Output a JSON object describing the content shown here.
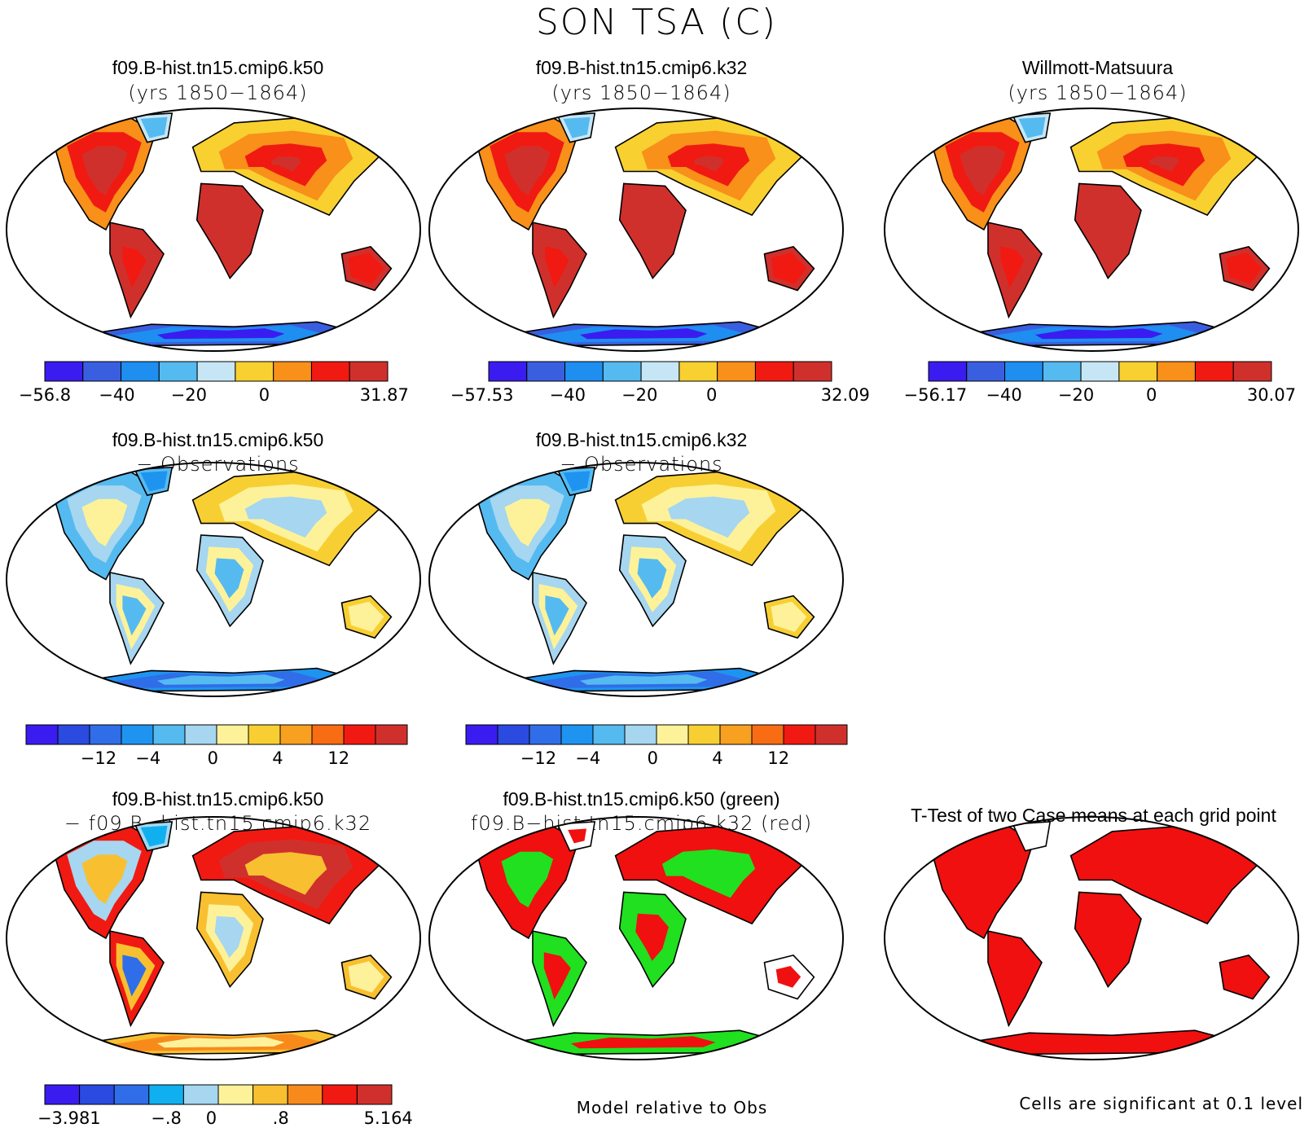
{
  "title": "SON TSA (C)",
  "colors": {
    "abs": [
      "#3a1cf0",
      "#3a5ee0",
      "#1e8ef0",
      "#55baf0",
      "#c6e6f5",
      "#f8d030",
      "#f8901a",
      "#f01a12",
      "#d0302c"
    ],
    "diff": [
      "#3a1cf0",
      "#2a4ae0",
      "#2f6ee8",
      "#1e94f0",
      "#55baf0",
      "#a6d6f0",
      "#fdf29a",
      "#f8cf32",
      "#f8a020",
      "#f86c14",
      "#f01a12",
      "#d0302c"
    ],
    "case": [
      "#3a1cf0",
      "#2a4ae0",
      "#2f6ee8",
      "#10b0f0",
      "#a6d6f0",
      "#fdf29a",
      "#f8c030",
      "#f88a1c",
      "#f01a12",
      "#d0302c"
    ],
    "green": "#20e020",
    "red": "#f01010"
  },
  "panels": [
    {
      "title": "f09.B-hist.tn15.cmip6.k50",
      "subtitle": "(yrs 1850−1864)",
      "scheme": "abs"
    },
    {
      "title": "f09.B-hist.tn15.cmip6.k32",
      "subtitle": "(yrs 1850−1864)",
      "scheme": "abs"
    },
    {
      "title": "Willmott-Matsuura",
      "subtitle": "(yrs 1850−1864)",
      "scheme": "abs"
    },
    {
      "title": "f09.B-hist.tn15.cmip6.k50",
      "subtitle": "− Observations",
      "scheme": "diff"
    },
    {
      "title": "f09.B-hist.tn15.cmip6.k32",
      "subtitle": "− Observations",
      "scheme": "diff"
    },
    {
      "title": "f09.B-hist.tn15.cmip6.k50",
      "subtitle": "− f09.B−hist.tn15.cmip6.k32",
      "scheme": "case"
    },
    {
      "title": "f09.B-hist.tn15.cmip6.k50 (green)",
      "subtitle": "f09.B−hist.tn15.cmip6.k32 (red)",
      "scheme": "greenred"
    },
    {
      "title": "T-Test of two Case means at each grid point",
      "subtitle": "",
      "scheme": "ttest"
    }
  ],
  "colorbars": [
    {
      "labels": [
        "−56.8",
        "−40",
        "−20",
        "0",
        "31.87"
      ]
    },
    {
      "labels": [
        "−57.53",
        "−40",
        "−20",
        "0",
        "32.09"
      ]
    },
    {
      "labels": [
        "−56.17",
        "−40",
        "−20",
        "0",
        "30.07"
      ]
    },
    {
      "labels": [
        "−12",
        "−4",
        "0",
        "4",
        "12"
      ]
    },
    {
      "labels": [
        "−12",
        "−4",
        "0",
        "4",
        "12"
      ]
    },
    {
      "labels": [
        "−3.981",
        "−.8",
        "0",
        ".8",
        "5.164"
      ]
    }
  ],
  "notes": {
    "model_relative": "Model relative to Obs",
    "significance": "Cells are significant at 0.1 level"
  },
  "chart_data": {
    "type": "heatmap",
    "title": "SON TSA (C)",
    "maps": [
      {
        "title": "f09.B-hist.tn15.cmip6.k50",
        "subtitle": "(yrs 1850−1864)",
        "colorbar_ticks": [
          "−56.8",
          "−40",
          "−20",
          "0",
          "31.87"
        ],
        "range": [
          -56.8,
          31.87
        ]
      },
      {
        "title": "f09.B-hist.tn15.cmip6.k32",
        "subtitle": "(yrs 1850−1864)",
        "colorbar_ticks": [
          "−57.53",
          "−40",
          "−20",
          "0",
          "32.09"
        ],
        "range": [
          -57.53,
          32.09
        ]
      },
      {
        "title": "Willmott-Matsuura",
        "subtitle": "(yrs 1850−1864)",
        "colorbar_ticks": [
          "−56.17",
          "−40",
          "−20",
          "0",
          "30.07"
        ],
        "range": [
          -56.17,
          30.07
        ]
      },
      {
        "title": "f09.B-hist.tn15.cmip6.k50",
        "subtitle": "− Observations",
        "colorbar_ticks": [
          "−12",
          "−4",
          "0",
          "4",
          "12"
        ]
      },
      {
        "title": "f09.B-hist.tn15.cmip6.k32",
        "subtitle": "− Observations",
        "colorbar_ticks": [
          "−12",
          "−4",
          "0",
          "4",
          "12"
        ]
      },
      {
        "title": "f09.B-hist.tn15.cmip6.k50",
        "subtitle": "− f09.B−hist.tn15.cmip6.k32",
        "colorbar_ticks": [
          "−3.981",
          "−.8",
          "0",
          ".8",
          "5.164"
        ],
        "range": [
          -3.981,
          5.164
        ]
      },
      {
        "title": "f09.B-hist.tn15.cmip6.k50 (green)",
        "subtitle": "f09.B−hist.tn15.cmip6.k32 (red)"
      },
      {
        "title": "T-Test of two Case means at each grid point"
      }
    ]
  }
}
